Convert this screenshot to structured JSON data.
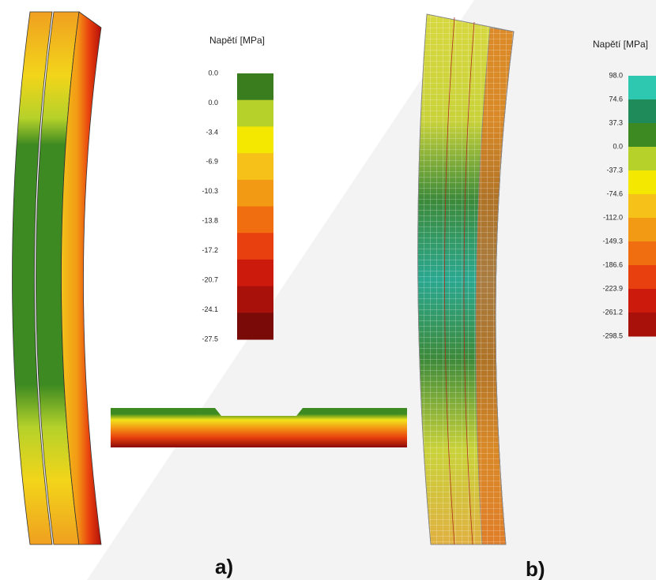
{
  "panel_a": {
    "legend": {
      "title": "Napětí [MPa]",
      "labels": [
        "0.0",
        "0.0",
        "-3.4",
        "-6.9",
        "-10.3",
        "-13.8",
        "-17.2",
        "-20.7",
        "-24.1",
        "-27.5"
      ]
    },
    "label": "a)"
  },
  "panel_b": {
    "legend": {
      "title": "Napětí [MPa]",
      "labels": [
        "98.0",
        "74.6",
        "37.3",
        "0.0",
        "-37.3",
        "-74.6",
        "-112.0",
        "-149.3",
        "-186.6",
        "-223.9",
        "-261.2",
        "-298.5"
      ]
    },
    "label": "b)"
  }
}
